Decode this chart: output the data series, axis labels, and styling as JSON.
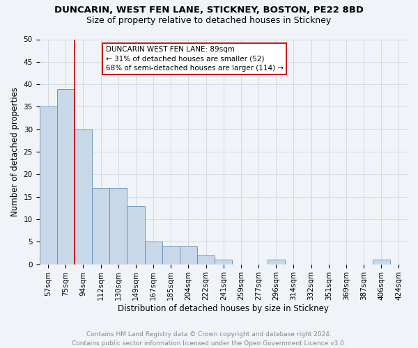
{
  "title1": "DUNCARIN, WEST FEN LANE, STICKNEY, BOSTON, PE22 8BD",
  "title2": "Size of property relative to detached houses in Stickney",
  "xlabel": "Distribution of detached houses by size in Stickney",
  "ylabel": "Number of detached properties",
  "categories": [
    "57sqm",
    "75sqm",
    "94sqm",
    "112sqm",
    "130sqm",
    "149sqm",
    "167sqm",
    "185sqm",
    "204sqm",
    "222sqm",
    "241sqm",
    "259sqm",
    "277sqm",
    "296sqm",
    "314sqm",
    "332sqm",
    "351sqm",
    "369sqm",
    "387sqm",
    "406sqm",
    "424sqm"
  ],
  "values": [
    35,
    39,
    30,
    17,
    17,
    13,
    5,
    4,
    4,
    2,
    1,
    0,
    0,
    1,
    0,
    0,
    0,
    0,
    0,
    1,
    0
  ],
  "bar_color": "#c8d8e8",
  "bar_edge_color": "#5b8db8",
  "vline_x": 1.5,
  "marker_label_line1": "DUNCARIN WEST FEN LANE: 89sqm",
  "marker_label_line2": "← 31% of detached houses are smaller (52)",
  "marker_label_line3": "68% of semi-detached houses are larger (114) →",
  "annotation_box_color": "#ffffff",
  "annotation_box_edge": "#cc0000",
  "vline_color": "#cc0000",
  "ylim": [
    0,
    50
  ],
  "yticks": [
    0,
    5,
    10,
    15,
    20,
    25,
    30,
    35,
    40,
    45,
    50
  ],
  "bg_color": "#f0f4f8",
  "grid_color": "#c8d0dc",
  "footer": "Contains HM Land Registry data © Crown copyright and database right 2024.\nContains public sector information licensed under the Open Government Licence v3.0.",
  "title1_fontsize": 9.5,
  "title2_fontsize": 9,
  "xlabel_fontsize": 8.5,
  "ylabel_fontsize": 8.5,
  "tick_fontsize": 7.5,
  "footer_fontsize": 6.5,
  "annot_fontsize": 7.5
}
